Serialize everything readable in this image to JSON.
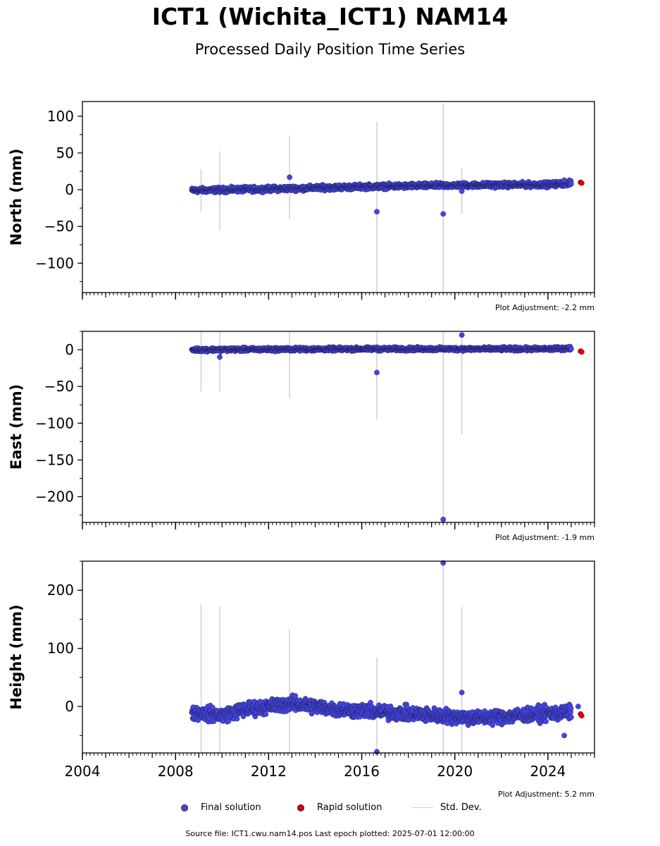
{
  "title": "ICT1 (Wichita_ICT1) NAM14",
  "subtitle": "Processed Daily Position Time Series",
  "legend": {
    "final": "Final solution",
    "rapid": "Rapid solution",
    "std": "Std. Dev."
  },
  "source_note": "Source file: ICT1.cwu.nam14.pos  Last epoch plotted: 2025-07-01 12:00:00",
  "colors": {
    "final": "#4545e6",
    "rapid": "#e60000",
    "std": "#cfcfcf"
  },
  "chart_data": [
    {
      "type": "scatter",
      "ylabel": "North (mm)",
      "adjustment": "Plot Adjustment: -2.2 mm",
      "xlim": [
        2004.0,
        2026.0
      ],
      "ylim": [
        -140,
        120
      ],
      "yticks": [
        100,
        50,
        0,
        -50,
        -100
      ],
      "ytick_labels": [
        "100",
        "50",
        "0",
        "−50",
        "−100"
      ],
      "xticks": [
        2004,
        2008,
        2012,
        2016,
        2020,
        2024
      ],
      "xtick_labels": [],
      "trend": [
        [
          2008.7,
          -1
        ],
        [
          2012,
          1
        ],
        [
          2016,
          4
        ],
        [
          2020,
          6
        ],
        [
          2024,
          7
        ],
        [
          2025.0,
          9
        ]
      ],
      "scatter_spread": 2.5,
      "outliers": [
        {
          "x": 2012.9,
          "y": 17,
          "std": 57
        },
        {
          "x": 2016.65,
          "y": -30,
          "std": 122
        },
        {
          "x": 2019.5,
          "y": -33,
          "std": 150
        },
        {
          "x": 2020.3,
          "y": -2,
          "std": 31
        },
        {
          "x": 2024.7,
          "y": 13,
          "std": 0
        }
      ],
      "std_bars": [
        {
          "x": 2009.1,
          "low": -30,
          "high": 28
        },
        {
          "x": 2009.9,
          "low": -56,
          "high": 52
        }
      ],
      "rapid": [
        {
          "x": 2025.4,
          "y": 10
        },
        {
          "x": 2025.45,
          "y": 9
        }
      ]
    },
    {
      "type": "scatter",
      "ylabel": "East (mm)",
      "adjustment": "Plot Adjustment: -1.9 mm",
      "xlim": [
        2004.0,
        2026.0
      ],
      "ylim": [
        -235,
        25
      ],
      "yticks": [
        0,
        -50,
        -100,
        -150,
        -200
      ],
      "ytick_labels": [
        "0",
        "−50",
        "−100",
        "−150",
        "−200"
      ],
      "xticks": [
        2004,
        2008,
        2012,
        2016,
        2020,
        2024
      ],
      "xtick_labels": [],
      "trend": [
        [
          2008.7,
          0
        ],
        [
          2016,
          1
        ],
        [
          2024,
          1
        ],
        [
          2025.0,
          2
        ]
      ],
      "scatter_spread": 1.8,
      "outliers": [
        {
          "x": 2009.9,
          "y": -10,
          "std": 0
        },
        {
          "x": 2016.65,
          "y": -31,
          "std": 0
        },
        {
          "x": 2019.5,
          "y": -231,
          "std": 0
        },
        {
          "x": 2020.3,
          "y": 20,
          "std": 0
        }
      ],
      "std_bars": [
        {
          "x": 2009.1,
          "low": -57,
          "high": 25
        },
        {
          "x": 2009.9,
          "low": -57,
          "high": 25
        },
        {
          "x": 2012.9,
          "low": -66,
          "high": 25
        },
        {
          "x": 2016.65,
          "low": -95,
          "high": 25
        },
        {
          "x": 2019.5,
          "low": -235,
          "high": 25
        },
        {
          "x": 2020.3,
          "low": -115,
          "high": 25
        }
      ],
      "rapid": [
        {
          "x": 2025.4,
          "y": -2
        },
        {
          "x": 2025.45,
          "y": -3
        }
      ]
    },
    {
      "type": "scatter",
      "ylabel": "Height (mm)",
      "adjustment": "Plot Adjustment: 5.2 mm",
      "xlim": [
        2004.0,
        2026.0
      ],
      "ylim": [
        -80,
        250
      ],
      "yticks": [
        200,
        100,
        0
      ],
      "ytick_labels": [
        "200",
        "100",
        "0"
      ],
      "xticks": [
        2004,
        2008,
        2012,
        2016,
        2020,
        2024
      ],
      "xtick_labels": [
        "2004",
        "2008",
        "2012",
        "2016",
        "2020",
        "2024"
      ],
      "trend": [
        [
          2008.7,
          -10
        ],
        [
          2010,
          -15
        ],
        [
          2011,
          -5
        ],
        [
          2013,
          5
        ],
        [
          2015,
          -5
        ],
        [
          2017,
          -10
        ],
        [
          2019,
          -15
        ],
        [
          2021,
          -20
        ],
        [
          2023,
          -15
        ],
        [
          2025.0,
          -10
        ]
      ],
      "scatter_spread": 9,
      "outliers": [
        {
          "x": 2016.65,
          "y": -78,
          "std": 0
        },
        {
          "x": 2019.5,
          "y": 247,
          "std": 0
        },
        {
          "x": 2020.3,
          "y": 24,
          "std": 0
        },
        {
          "x": 2024.7,
          "y": -50,
          "std": 0
        },
        {
          "x": 2025.3,
          "y": 0,
          "std": 0
        }
      ],
      "std_bars": [
        {
          "x": 2009.1,
          "low": -80,
          "high": 176
        },
        {
          "x": 2009.9,
          "low": -80,
          "high": 172
        },
        {
          "x": 2012.9,
          "low": -80,
          "high": 133
        },
        {
          "x": 2016.65,
          "low": -80,
          "high": 84
        },
        {
          "x": 2019.5,
          "low": -80,
          "high": 250
        },
        {
          "x": 2020.3,
          "low": -80,
          "high": 171
        }
      ],
      "rapid": [
        {
          "x": 2025.4,
          "y": -13
        },
        {
          "x": 2025.45,
          "y": -16
        }
      ]
    }
  ]
}
